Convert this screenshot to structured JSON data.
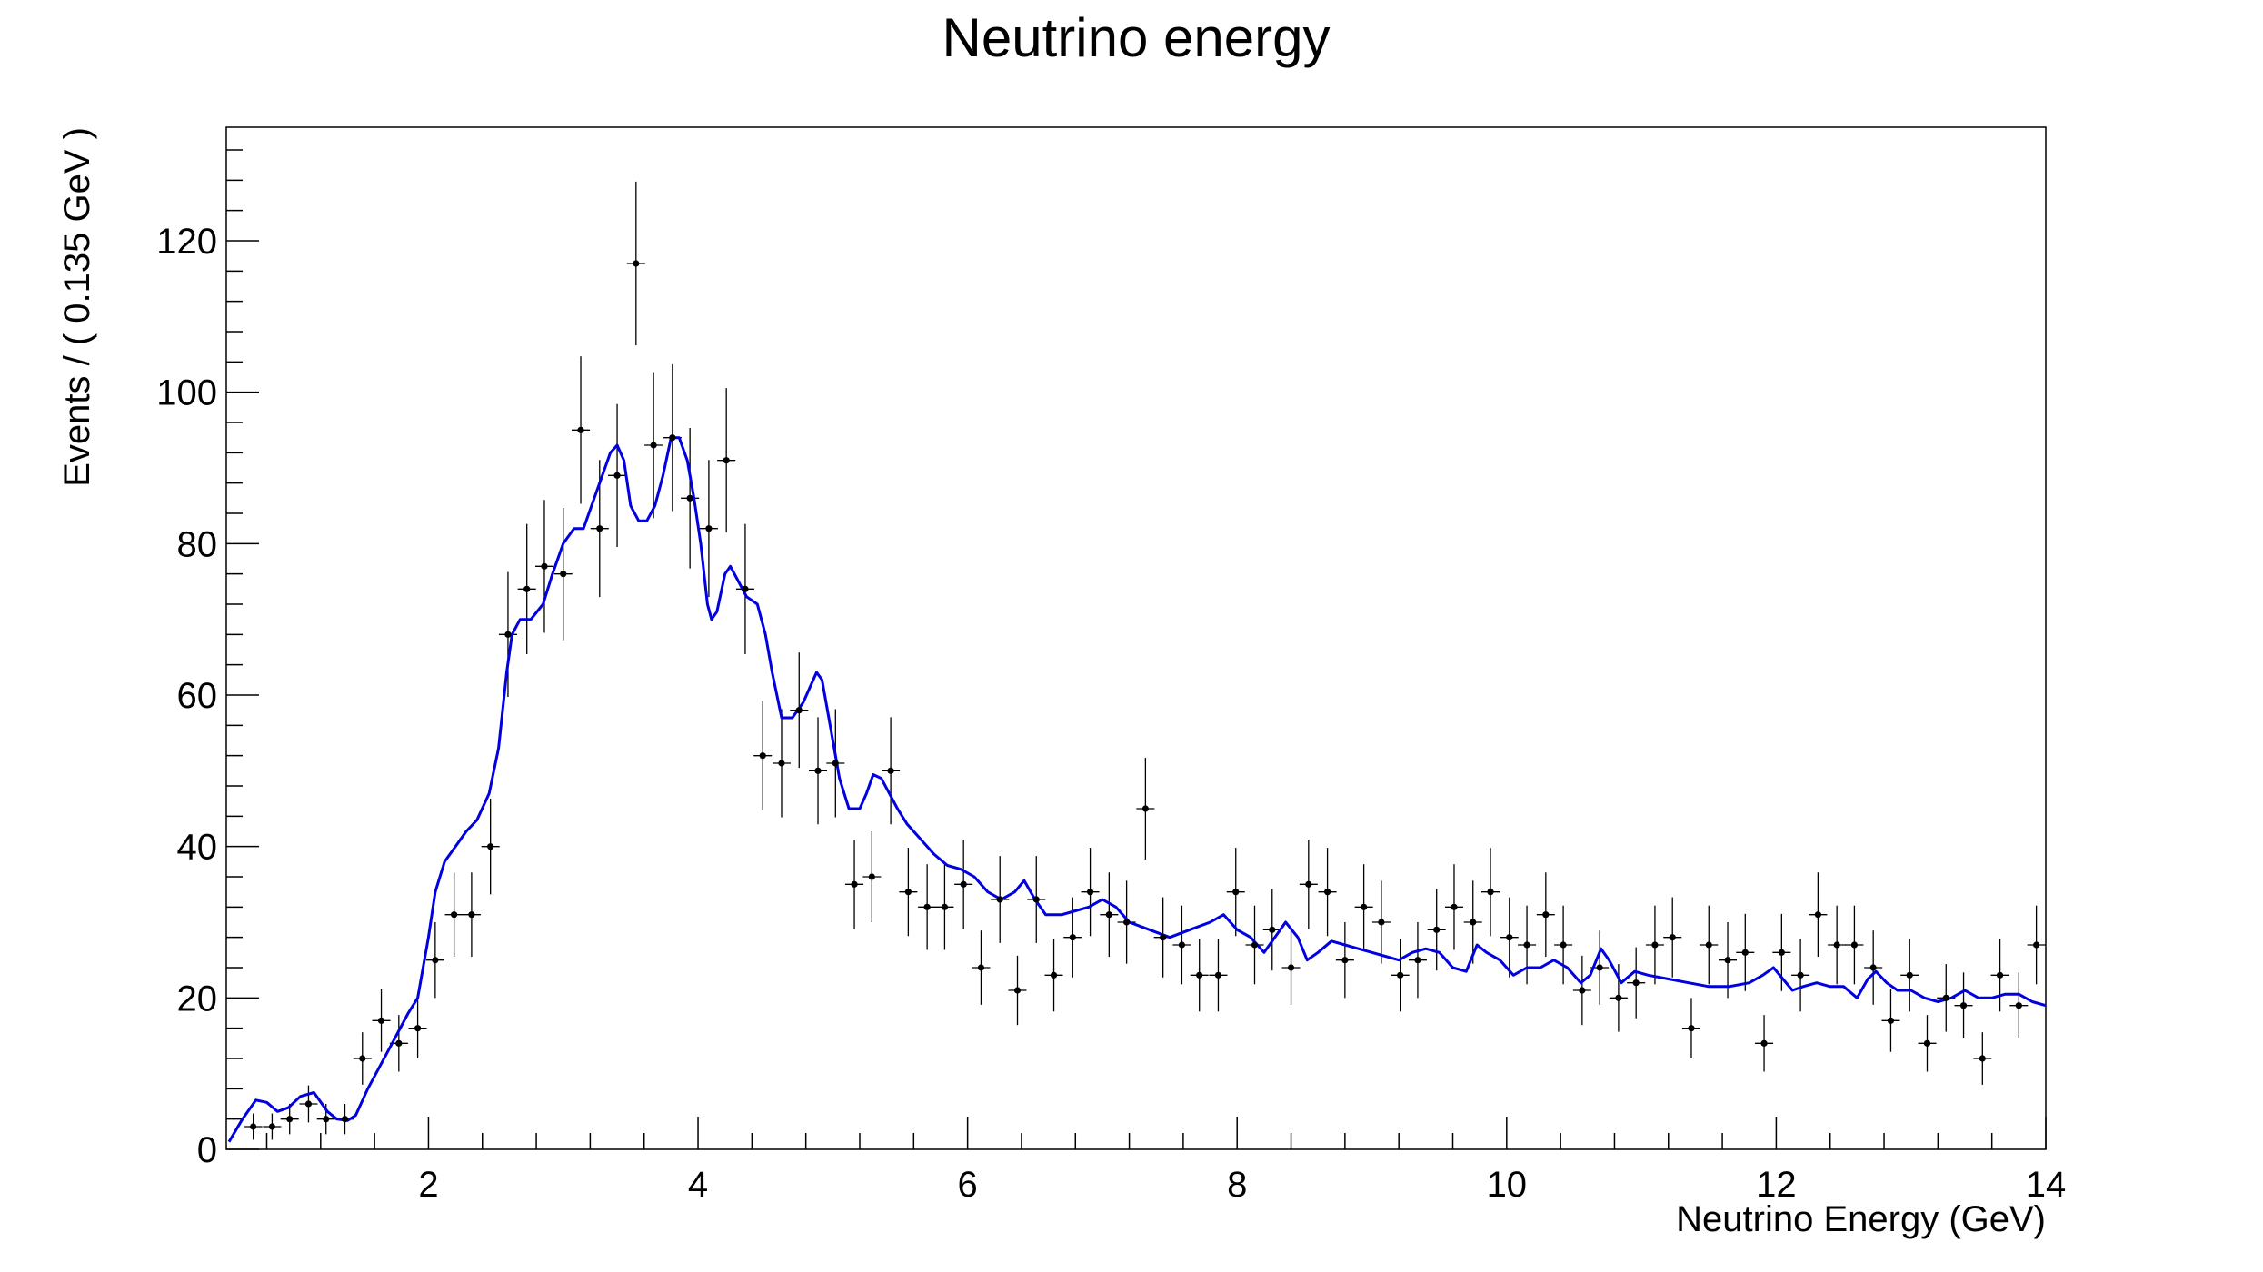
{
  "chart_data": {
    "type": "scatter",
    "title": "Neutrino energy",
    "xlabel": "Neutrino Energy (GeV)",
    "ylabel": "Events / ( 0.135 GeV )",
    "xlim": [
      0.5,
      14
    ],
    "ylim": [
      0,
      135
    ],
    "xticks": [
      2,
      4,
      6,
      8,
      10,
      12,
      14
    ],
    "yticks": [
      0,
      20,
      40,
      60,
      80,
      100,
      120
    ],
    "grid": false,
    "legend": "none",
    "bin_width": 0.135,
    "series": [
      {
        "type": "data-points-with-errors",
        "color": "#000000",
        "points": [
          [
            0.7,
            3
          ],
          [
            0.84,
            3
          ],
          [
            0.97,
            4
          ],
          [
            1.11,
            6
          ],
          [
            1.24,
            4
          ],
          [
            1.38,
            4
          ],
          [
            1.51,
            12
          ],
          [
            1.65,
            17
          ],
          [
            1.78,
            14
          ],
          [
            1.92,
            16
          ],
          [
            2.05,
            25
          ],
          [
            2.19,
            31
          ],
          [
            2.32,
            31
          ],
          [
            2.46,
            40
          ],
          [
            2.59,
            68
          ],
          [
            2.73,
            74
          ],
          [
            2.86,
            77
          ],
          [
            3.0,
            76
          ],
          [
            3.13,
            95
          ],
          [
            3.27,
            82
          ],
          [
            3.4,
            89
          ],
          [
            3.54,
            117
          ],
          [
            3.67,
            93
          ],
          [
            3.81,
            94
          ],
          [
            3.94,
            86
          ],
          [
            4.08,
            82
          ],
          [
            4.21,
            91
          ],
          [
            4.35,
            74
          ],
          [
            4.48,
            52
          ],
          [
            4.62,
            51
          ],
          [
            4.75,
            58
          ],
          [
            4.89,
            50
          ],
          [
            5.02,
            51
          ],
          [
            5.16,
            35
          ],
          [
            5.29,
            36
          ],
          [
            5.43,
            50
          ],
          [
            5.56,
            34
          ],
          [
            5.7,
            32
          ],
          [
            5.83,
            32
          ],
          [
            5.97,
            35
          ],
          [
            6.1,
            24
          ],
          [
            6.24,
            33
          ],
          [
            6.37,
            21
          ],
          [
            6.51,
            33
          ],
          [
            6.64,
            23
          ],
          [
            6.78,
            28
          ],
          [
            6.91,
            34
          ],
          [
            7.05,
            31
          ],
          [
            7.18,
            30
          ],
          [
            7.32,
            45
          ],
          [
            7.45,
            28
          ],
          [
            7.59,
            27
          ],
          [
            7.72,
            23
          ],
          [
            7.86,
            23
          ],
          [
            7.99,
            34
          ],
          [
            8.13,
            27
          ],
          [
            8.26,
            29
          ],
          [
            8.4,
            24
          ],
          [
            8.53,
            35
          ],
          [
            8.67,
            34
          ],
          [
            8.8,
            25
          ],
          [
            8.94,
            32
          ],
          [
            9.07,
            30
          ],
          [
            9.21,
            23
          ],
          [
            9.34,
            25
          ],
          [
            9.48,
            29
          ],
          [
            9.61,
            32
          ],
          [
            9.75,
            30
          ],
          [
            9.88,
            34
          ],
          [
            10.02,
            28
          ],
          [
            10.15,
            27
          ],
          [
            10.29,
            31
          ],
          [
            10.42,
            27
          ],
          [
            10.56,
            21
          ],
          [
            10.69,
            24
          ],
          [
            10.83,
            20
          ],
          [
            10.96,
            22
          ],
          [
            11.1,
            27
          ],
          [
            11.23,
            28
          ],
          [
            11.37,
            16
          ],
          [
            11.5,
            27
          ],
          [
            11.64,
            25
          ],
          [
            11.77,
            26
          ],
          [
            11.91,
            14
          ],
          [
            12.04,
            26
          ],
          [
            12.18,
            23
          ],
          [
            12.31,
            31
          ],
          [
            12.45,
            27
          ],
          [
            12.58,
            27
          ],
          [
            12.72,
            24
          ],
          [
            12.85,
            17
          ],
          [
            12.99,
            23
          ],
          [
            13.12,
            14
          ],
          [
            13.26,
            20
          ],
          [
            13.39,
            19
          ],
          [
            13.53,
            12
          ],
          [
            13.66,
            23
          ],
          [
            13.8,
            19
          ],
          [
            13.93,
            27
          ]
        ]
      },
      {
        "type": "line",
        "color": "#0000e0",
        "points": [
          [
            0.52,
            1
          ],
          [
            0.62,
            4
          ],
          [
            0.72,
            6.5
          ],
          [
            0.8,
            6.2
          ],
          [
            0.88,
            5
          ],
          [
            0.96,
            5.5
          ],
          [
            1.05,
            7
          ],
          [
            1.15,
            7.5
          ],
          [
            1.25,
            5
          ],
          [
            1.32,
            4
          ],
          [
            1.4,
            3.8
          ],
          [
            1.46,
            4.5
          ],
          [
            1.55,
            8
          ],
          [
            1.7,
            13
          ],
          [
            1.85,
            18
          ],
          [
            1.92,
            20
          ],
          [
            2.0,
            28
          ],
          [
            2.05,
            34
          ],
          [
            2.12,
            38
          ],
          [
            2.2,
            40
          ],
          [
            2.28,
            42
          ],
          [
            2.36,
            43.5
          ],
          [
            2.45,
            47
          ],
          [
            2.52,
            53
          ],
          [
            2.58,
            63
          ],
          [
            2.62,
            68
          ],
          [
            2.68,
            70
          ],
          [
            2.76,
            70
          ],
          [
            2.85,
            72
          ],
          [
            2.92,
            76
          ],
          [
            3.0,
            80
          ],
          [
            3.08,
            82
          ],
          [
            3.15,
            82
          ],
          [
            3.25,
            87
          ],
          [
            3.35,
            92
          ],
          [
            3.4,
            93
          ],
          [
            3.45,
            91
          ],
          [
            3.5,
            85
          ],
          [
            3.56,
            83
          ],
          [
            3.62,
            83
          ],
          [
            3.68,
            85
          ],
          [
            3.74,
            89
          ],
          [
            3.8,
            94
          ],
          [
            3.86,
            94
          ],
          [
            3.92,
            91
          ],
          [
            3.97,
            86
          ],
          [
            4.02,
            80
          ],
          [
            4.07,
            72
          ],
          [
            4.1,
            70
          ],
          [
            4.14,
            71
          ],
          [
            4.2,
            76
          ],
          [
            4.24,
            77
          ],
          [
            4.3,
            75
          ],
          [
            4.36,
            73
          ],
          [
            4.44,
            72
          ],
          [
            4.5,
            68
          ],
          [
            4.55,
            63
          ],
          [
            4.62,
            57
          ],
          [
            4.7,
            57
          ],
          [
            4.78,
            59
          ],
          [
            4.88,
            63
          ],
          [
            4.92,
            62
          ],
          [
            4.98,
            56
          ],
          [
            5.05,
            49
          ],
          [
            5.12,
            45
          ],
          [
            5.2,
            45
          ],
          [
            5.25,
            47
          ],
          [
            5.3,
            49.5
          ],
          [
            5.36,
            49
          ],
          [
            5.42,
            47
          ],
          [
            5.48,
            45
          ],
          [
            5.55,
            43
          ],
          [
            5.65,
            41
          ],
          [
            5.75,
            39
          ],
          [
            5.85,
            37.5
          ],
          [
            5.95,
            37
          ],
          [
            6.05,
            36
          ],
          [
            6.15,
            34
          ],
          [
            6.25,
            33
          ],
          [
            6.35,
            34
          ],
          [
            6.42,
            35.5
          ],
          [
            6.5,
            33
          ],
          [
            6.58,
            31
          ],
          [
            6.7,
            31
          ],
          [
            6.8,
            31.5
          ],
          [
            6.9,
            32
          ],
          [
            7.0,
            33
          ],
          [
            7.1,
            32
          ],
          [
            7.2,
            30
          ],
          [
            7.35,
            29
          ],
          [
            7.5,
            28
          ],
          [
            7.65,
            29
          ],
          [
            7.8,
            30
          ],
          [
            7.9,
            31
          ],
          [
            8.0,
            29
          ],
          [
            8.1,
            28
          ],
          [
            8.2,
            26
          ],
          [
            8.28,
            28
          ],
          [
            8.36,
            30
          ],
          [
            8.45,
            28
          ],
          [
            8.52,
            25
          ],
          [
            8.6,
            26
          ],
          [
            8.7,
            27.5
          ],
          [
            8.8,
            27
          ],
          [
            8.9,
            26.5
          ],
          [
            9.0,
            26
          ],
          [
            9.1,
            25.5
          ],
          [
            9.2,
            25
          ],
          [
            9.3,
            26
          ],
          [
            9.4,
            26.5
          ],
          [
            9.5,
            26
          ],
          [
            9.6,
            24
          ],
          [
            9.7,
            23.5
          ],
          [
            9.78,
            27
          ],
          [
            9.85,
            26
          ],
          [
            9.95,
            25
          ],
          [
            10.05,
            23
          ],
          [
            10.15,
            24
          ],
          [
            10.25,
            24
          ],
          [
            10.35,
            25
          ],
          [
            10.45,
            24
          ],
          [
            10.55,
            22
          ],
          [
            10.62,
            23
          ],
          [
            10.7,
            26.5
          ],
          [
            10.76,
            25
          ],
          [
            10.85,
            22
          ],
          [
            10.95,
            23.5
          ],
          [
            11.05,
            23
          ],
          [
            11.2,
            22.5
          ],
          [
            11.35,
            22
          ],
          [
            11.5,
            21.5
          ],
          [
            11.65,
            21.5
          ],
          [
            11.8,
            22
          ],
          [
            11.9,
            23
          ],
          [
            11.98,
            24
          ],
          [
            12.05,
            22.5
          ],
          [
            12.12,
            21
          ],
          [
            12.2,
            21.5
          ],
          [
            12.3,
            22
          ],
          [
            12.4,
            21.5
          ],
          [
            12.5,
            21.5
          ],
          [
            12.6,
            20
          ],
          [
            12.68,
            22.5
          ],
          [
            12.74,
            23.5
          ],
          [
            12.82,
            22
          ],
          [
            12.9,
            21
          ],
          [
            13.0,
            21
          ],
          [
            13.1,
            20
          ],
          [
            13.2,
            19.5
          ],
          [
            13.3,
            20
          ],
          [
            13.4,
            21
          ],
          [
            13.5,
            20
          ],
          [
            13.6,
            20
          ],
          [
            13.7,
            20.5
          ],
          [
            13.8,
            20.5
          ],
          [
            13.9,
            19.5
          ],
          [
            14.0,
            19
          ]
        ]
      }
    ]
  }
}
